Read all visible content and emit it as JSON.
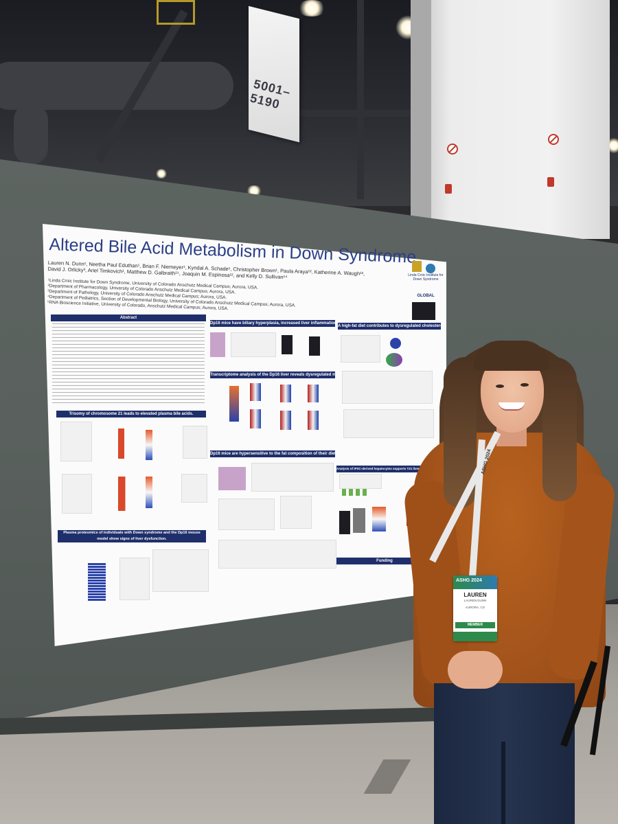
{
  "sign": {
    "text": "5001–5190"
  },
  "poster": {
    "title": "Altered Bile Acid Metabolism in Down Syndrome",
    "authors": "Lauren N. Dunn¹, Neetha Paul Eduthan¹, Brian F. Niemeyer¹, Kyndal A. Schade¹, Christopher Brown¹, Paula Araya¹², Katherine A. Waugh¹², David J. Orlicky³, Ariel Timkovich¹, Matthew D. Galbraith¹⁵, Joaquin M. Espinosa¹², and Kelly D. Sullivan¹⁴",
    "affiliations": [
      "¹Linda Crnic Institute for Down Syndrome, University of Colorado Anschutz Medical Campus; Aurora, USA.",
      "²Department of Pharmacology, University of Colorado Anschutz Medical Campus; Aurora, USA.",
      "³Department of Pathology, University of Colorado Anschutz Medical Campus; Aurora, USA.",
      "⁴Department of Pediatrics, Section of Developmental Biology, University of Colorado Anschutz Medical Campus; Aurora, USA.",
      "⁵RNA Bioscience Initiative, University of Colorado, Anschutz Medical Campus; Aurora, USA."
    ],
    "logo_text": "Linda Crnic Institute for Down Syndrome",
    "logo_global": "GLOBAL",
    "sections": {
      "abstract": "Abstract",
      "trisomy": "Trisomy of chromosome 21 leads to elevated plasma bile acids.",
      "plasma": "Plasma proteomics of individuals with Down syndrome and the Dp16 mouse model show signs of liver dysfunction.",
      "dp16_biliary": "Dp16 mice have biliary hyperplasia, increased liver inflammation, and activated HSCs.",
      "transcriptome": "Transcriptome analysis of the Dp16 liver reveals dysregulated metabolic pathways.",
      "hypersensitive": "Dp16 mice are hypersensitive to the fat composition of their diet.",
      "highfat": "A high-fat diet contributes to dysregulated cholesterol homeostasis in Dp16 mice.",
      "ipsc": "Analysis of iPSC-derived hepatocytes supports T21 liver dysfunction is cell intrinsic.",
      "funding": "Funding"
    }
  },
  "badge": {
    "conference": "ASHG 2024",
    "name": "LAUREN",
    "sub": "LAUREN DUNN",
    "location": "AURORA, CO",
    "member": "MEMBER"
  },
  "lanyard": {
    "text": "ASHG 2024"
  },
  "colors": {
    "poster_header": "#1f2f6b",
    "sweater": "#a4541b",
    "board": "#5a615e"
  }
}
